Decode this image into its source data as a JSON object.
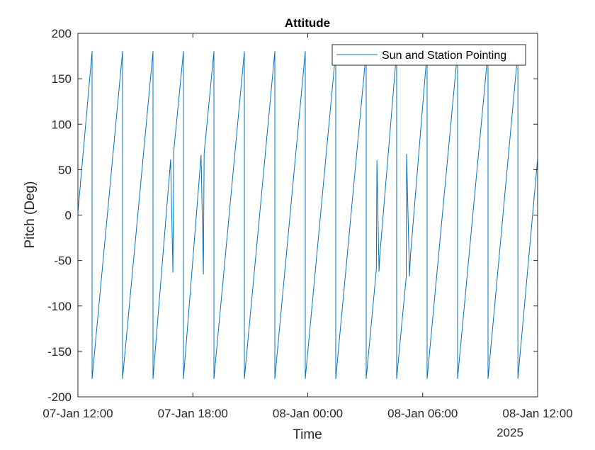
{
  "figure": {
    "background": "#ffffff",
    "axes_color": "#262626",
    "line_color": "#0072BD"
  },
  "chart_data": {
    "type": "line",
    "title": "Attitude",
    "xlabel": "Time",
    "ylabel": "Pitch (Deg)",
    "x_secondary_label": "2025",
    "x_unit": "hours since 07-Jan-2025 12:00",
    "xlim": [
      0,
      24
    ],
    "ylim": [
      -200,
      200
    ],
    "xticks": [
      {
        "value": 0,
        "label": "07-Jan 12:00"
      },
      {
        "value": 6,
        "label": "07-Jan 18:00"
      },
      {
        "value": 12,
        "label": "08-Jan 00:00"
      },
      {
        "value": 18,
        "label": "08-Jan 06:00"
      },
      {
        "value": 24,
        "label": "08-Jan 12:00"
      }
    ],
    "yticks": [
      {
        "value": 200,
        "label": "200"
      },
      {
        "value": 150,
        "label": "150"
      },
      {
        "value": 100,
        "label": "100"
      },
      {
        "value": 50,
        "label": "50"
      },
      {
        "value": 0,
        "label": "0"
      },
      {
        "value": -50,
        "label": "-50"
      },
      {
        "value": -100,
        "label": "-100"
      },
      {
        "value": -150,
        "label": "-150"
      },
      {
        "value": -200,
        "label": "-200"
      }
    ],
    "grid": false,
    "legend": {
      "position": "northeast",
      "entries": [
        "Sun and Station Pointing"
      ]
    },
    "series": [
      {
        "name": "Sun and Station Pointing",
        "color": "#0072BD",
        "points": [
          [
            0.0,
            3
          ],
          [
            0.74,
            180
          ],
          [
            0.74,
            -180
          ],
          [
            2.33,
            180
          ],
          [
            2.33,
            -180
          ],
          [
            3.92,
            180
          ],
          [
            3.92,
            -180
          ],
          [
            4.84,
            61
          ],
          [
            4.96,
            -63
          ],
          [
            5.0,
            70
          ],
          [
            5.51,
            180
          ],
          [
            5.51,
            -180
          ],
          [
            6.43,
            66
          ],
          [
            6.55,
            -65
          ],
          [
            6.59,
            68
          ],
          [
            7.1,
            180
          ],
          [
            7.1,
            -180
          ],
          [
            8.69,
            180
          ],
          [
            8.69,
            -180
          ],
          [
            10.28,
            180
          ],
          [
            10.28,
            -180
          ],
          [
            11.87,
            180
          ],
          [
            11.87,
            -180
          ],
          [
            13.46,
            180
          ],
          [
            13.46,
            -180
          ],
          [
            15.05,
            180
          ],
          [
            15.05,
            -180
          ],
          [
            15.58,
            -60
          ],
          [
            15.61,
            60
          ],
          [
            15.72,
            -62
          ],
          [
            15.76,
            -45
          ],
          [
            16.64,
            180
          ],
          [
            16.64,
            -180
          ],
          [
            17.14,
            -68
          ],
          [
            17.16,
            67
          ],
          [
            17.31,
            -67
          ],
          [
            17.36,
            -45
          ],
          [
            18.23,
            180
          ],
          [
            18.23,
            -180
          ],
          [
            19.82,
            180
          ],
          [
            19.82,
            -180
          ],
          [
            21.41,
            180
          ],
          [
            21.41,
            -180
          ],
          [
            22.97,
            180
          ],
          [
            22.97,
            -180
          ],
          [
            24.0,
            62
          ]
        ]
      }
    ]
  }
}
